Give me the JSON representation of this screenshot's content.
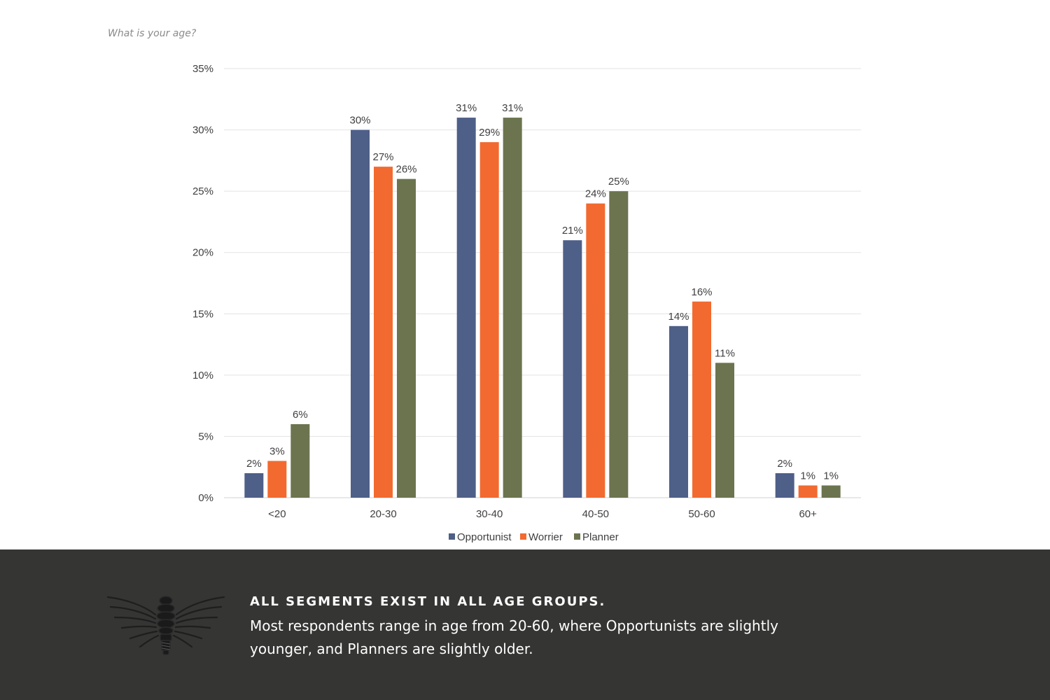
{
  "question": "What is your age?",
  "colors": {
    "opportunist": "#4e5f88",
    "worrier": "#f26a30",
    "planner": "#6b744e",
    "footer_bg": "#353534",
    "grid": "#e3e3e3"
  },
  "chart_data": {
    "type": "bar",
    "categories": [
      "<20",
      "20-30",
      "30-40",
      "40-50",
      "50-60",
      "60+"
    ],
    "series": [
      {
        "name": "Opportunist",
        "values": [
          2,
          30,
          31,
          21,
          14,
          2
        ],
        "labels": [
          "2%",
          "30%",
          "31%",
          "21%",
          "14%",
          "2%"
        ]
      },
      {
        "name": "Worrier",
        "values": [
          3,
          27,
          29,
          24,
          16,
          1
        ],
        "labels": [
          "3%",
          "27%",
          "29%",
          "24%",
          "16%",
          "1%"
        ]
      },
      {
        "name": "Planner",
        "values": [
          6,
          26,
          31,
          25,
          11,
          1
        ],
        "labels": [
          "6%",
          "26%",
          "31%",
          "25%",
          "11%",
          "1%"
        ]
      }
    ],
    "yticks": [
      0,
      5,
      10,
      15,
      20,
      25,
      30,
      35
    ],
    "ytick_labels": [
      "0%",
      "5%",
      "10%",
      "15%",
      "20%",
      "25%",
      "30%",
      "35%"
    ],
    "ylim": [
      0,
      35
    ],
    "grid": true,
    "legend_position": "bottom-center"
  },
  "footer": {
    "heading": "ALL SEGMENTS EXIST IN ALL AGE GROUPS.",
    "body": "Most respondents range in age from 20-60, where Opportunists are slightly younger, and Planners are slightly older."
  }
}
